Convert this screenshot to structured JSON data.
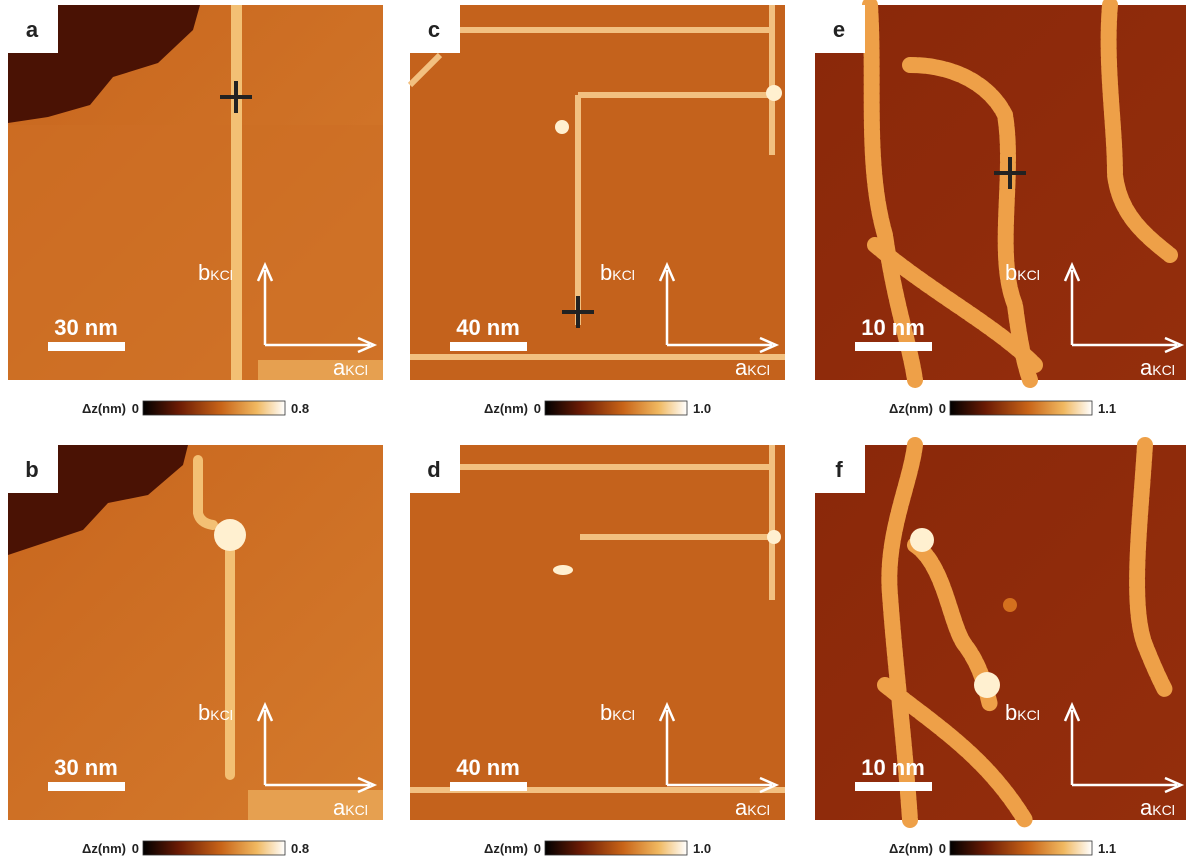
{
  "panels": [
    {
      "label": "a",
      "scale_bar": "30 nm",
      "b_axis": "b",
      "a_axis": "a",
      "axis_subscript": "KCl",
      "colorbar": {
        "label": "Δz(nm)",
        "min": "0",
        "max": "0.8"
      }
    },
    {
      "label": "b",
      "scale_bar": "30 nm",
      "b_axis": "b",
      "a_axis": "a",
      "axis_subscript": "KCl",
      "colorbar": {
        "label": "Δz(nm)",
        "min": "0",
        "max": "0.8"
      }
    },
    {
      "label": "c",
      "scale_bar": "40 nm",
      "b_axis": "b",
      "a_axis": "a",
      "axis_subscript": "KCl",
      "colorbar": {
        "label": "Δz(nm)",
        "min": "0",
        "max": "1.0"
      }
    },
    {
      "label": "d",
      "scale_bar": "40 nm",
      "b_axis": "b",
      "a_axis": "a",
      "axis_subscript": "KCl",
      "colorbar": {
        "label": "Δz(nm)",
        "min": "0",
        "max": "1.0"
      }
    },
    {
      "label": "e",
      "scale_bar": "10 nm",
      "b_axis": "b",
      "a_axis": "a",
      "axis_subscript": "KCl",
      "colorbar": {
        "label": "Δz(nm)",
        "min": "0",
        "max": "1.1"
      }
    },
    {
      "label": "f",
      "scale_bar": "10 nm",
      "b_axis": "b",
      "a_axis": "a",
      "axis_subscript": "KCl",
      "colorbar": {
        "label": "Δz(nm)",
        "min": "0",
        "max": "1.1"
      }
    }
  ]
}
